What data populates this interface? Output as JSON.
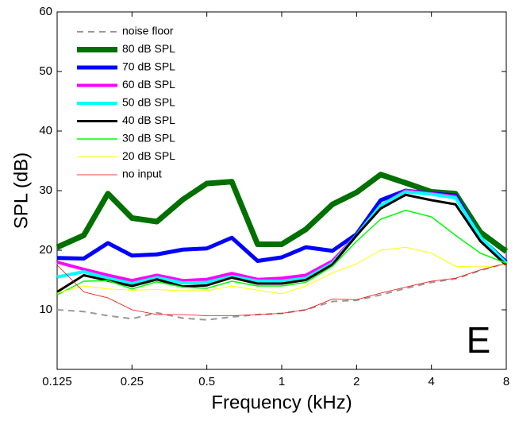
{
  "chart_data": {
    "type": "line",
    "xlabel": "Frequency (kHz)",
    "ylabel": "SPL (dB)",
    "annotation": "E",
    "log_x": true,
    "legend": "upper left",
    "x": [
      0.125,
      0.16,
      0.2,
      0.25,
      0.315,
      0.4,
      0.5,
      0.63,
      0.8,
      1,
      1.25,
      1.6,
      2,
      2.5,
      3.15,
      4,
      5,
      6.3,
      8
    ],
    "xlim": [
      0.125,
      8
    ],
    "xticks": [
      0.125,
      0.25,
      0.5,
      1,
      2,
      4,
      8
    ],
    "ylim": [
      0,
      60
    ],
    "yticks": [
      10,
      20,
      30,
      40,
      50,
      60
    ],
    "series": [
      {
        "name": "noise floor",
        "color": "#999999",
        "linestyle": "dashed",
        "values": [
          10,
          9.7,
          9,
          8.5,
          9.5,
          8.6,
          8.3,
          8.8,
          9.2,
          9.4,
          10,
          11.4,
          11.6,
          12.5,
          13.6,
          14.6,
          15.2,
          16.6,
          17.8
        ]
      },
      {
        "name": "80 dB SPL",
        "color": "#007000",
        "values": [
          20.5,
          22.5,
          29.5,
          25.4,
          24.8,
          28.5,
          31.2,
          31.5,
          21,
          21,
          23.5,
          27.7,
          29.7,
          32.7,
          31.3,
          29.8,
          29.5,
          23,
          19.8
        ]
      },
      {
        "name": "70 dB SPL",
        "color": "#0000ff",
        "values": [
          18.7,
          18.6,
          21.2,
          19.1,
          19.3,
          20.1,
          20.3,
          22.1,
          18.2,
          18.8,
          20.5,
          19.9,
          22.7,
          28.4,
          30,
          29.5,
          29.2,
          22,
          18
        ]
      },
      {
        "name": "60 dB SPL",
        "color": "#ff00ff",
        "values": [
          18,
          16.8,
          15.8,
          14.9,
          15.8,
          14.9,
          15.1,
          16.1,
          15.1,
          15.3,
          15.8,
          18.2,
          22.5,
          27.5,
          30,
          29.5,
          29,
          21.8,
          17.8
        ]
      },
      {
        "name": "50 dB SPL",
        "color": "#00ffff",
        "values": [
          15.5,
          16.4,
          15.3,
          14.4,
          15.4,
          14.5,
          14.6,
          15.6,
          14.8,
          14.8,
          15.3,
          17.8,
          22.5,
          27.5,
          29.8,
          29.4,
          28.8,
          22.2,
          17.8
        ]
      },
      {
        "name": "40 dB SPL",
        "color": "#000000",
        "values": [
          13,
          15.8,
          14.9,
          14,
          15.1,
          13.9,
          14.1,
          15.4,
          14.4,
          14.4,
          15,
          17.6,
          22.5,
          27,
          29.3,
          28.4,
          27.7,
          21.5,
          17.5
        ]
      },
      {
        "name": "30 dB SPL",
        "color": "#00ff00",
        "values": [
          12.5,
          14.8,
          14.9,
          13.5,
          14.7,
          13.8,
          13.6,
          14.8,
          14,
          14,
          14.6,
          17.3,
          21.5,
          25.2,
          26.7,
          25.6,
          22.5,
          19.5,
          17.8
        ]
      },
      {
        "name": "20 dB SPL",
        "color": "#ffff00",
        "values": [
          12.8,
          14,
          13.5,
          13.3,
          13.4,
          13.2,
          13.2,
          14,
          13.3,
          12.7,
          14,
          16.2,
          17.7,
          20,
          20.5,
          19.5,
          17.3,
          17.2,
          17.5
        ]
      },
      {
        "name": "no input",
        "color": "#ff0000",
        "values": [
          17.5,
          13,
          12,
          10,
          9.2,
          9.2,
          9,
          9,
          9.2,
          9.4,
          10,
          11.8,
          11.7,
          12.8,
          13.8,
          14.8,
          15.3,
          16.7,
          17.8
        ]
      }
    ]
  }
}
